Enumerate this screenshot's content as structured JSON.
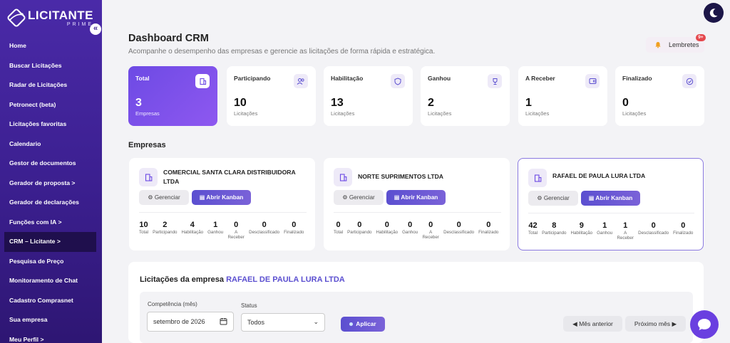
{
  "brand": {
    "name": "LICITANTE",
    "sub": "PRIME"
  },
  "sidebar": {
    "collapse_label": "«",
    "items": [
      {
        "label": "Home"
      },
      {
        "label": "Buscar Licitações"
      },
      {
        "label": "Radar de Licitações"
      },
      {
        "label": "Petronect (beta)"
      },
      {
        "label": "Licitações favoritas"
      },
      {
        "label": "Calendario"
      },
      {
        "label": "Gestor de documentos"
      },
      {
        "label": "Gerador de proposta >"
      },
      {
        "label": "Gerador de declarações"
      },
      {
        "label": "Funções com IA >"
      },
      {
        "label": "CRM – Licitante >",
        "active": true
      },
      {
        "label": "Pesquisa de Preço"
      },
      {
        "label": "Monitoramento de Chat"
      },
      {
        "label": "Cadastro Comprasnet"
      },
      {
        "label": "Sua empresa"
      },
      {
        "label": "Meu Perfil >"
      }
    ]
  },
  "header": {
    "title": "Dashboard CRM",
    "subtitle": "Acompanhe o desempenho das empresas e gerencie as licitações de forma rápida e estratégica.",
    "reminders_label": "Lembretes",
    "reminders_badge": "9+"
  },
  "stats": [
    {
      "label": "Total",
      "value": "3",
      "sub": "Empresas",
      "icon": "building-icon"
    },
    {
      "label": "Participando",
      "value": "10",
      "sub": "Licitações",
      "icon": "users-icon"
    },
    {
      "label": "Habilitação",
      "value": "13",
      "sub": "Licitações",
      "icon": "shield-icon"
    },
    {
      "label": "Ganhou",
      "value": "2",
      "sub": "Licitações",
      "icon": "trophy-icon"
    },
    {
      "label": "A Receber",
      "value": "1",
      "sub": "Licitações",
      "icon": "wallet-icon"
    },
    {
      "label": "Finalizado",
      "value": "0",
      "sub": "Licitações",
      "icon": "check-circle-icon"
    }
  ],
  "companies_section_title": "Empresas",
  "company_buttons": {
    "manage": "⚙ Gerenciar",
    "kanban": "▦ Abrir Kanban"
  },
  "company_stat_labels": [
    "Total",
    "Participando",
    "Habilitação",
    "Ganhou",
    "A Receber",
    "Desclassificado",
    "Finalizado"
  ],
  "companies": [
    {
      "name": "COMERCIAL SANTA CLARA DISTRIBUIDORA LTDA",
      "stats": [
        "10",
        "2",
        "4",
        "1",
        "0",
        "0",
        "0"
      ]
    },
    {
      "name": "NORTE SUPRIMENTOS LTDA",
      "stats": [
        "0",
        "0",
        "0",
        "0",
        "0",
        "0",
        "0"
      ]
    },
    {
      "name": "RAFAEL DE PAULA LURA LTDA",
      "stats": [
        "42",
        "8",
        "9",
        "1",
        "1",
        "0",
        "0"
      ],
      "selected": true
    }
  ],
  "panel": {
    "title_prefix": "Licitações da empresa",
    "title_company": "RAFAEL DE PAULA LURA LTDA",
    "competencia_label": "Competência (mês)",
    "competencia_value": "setembro de 2026",
    "status_label": "Status",
    "status_value": "Todos",
    "apply_label": "Aplicar",
    "prev_label": "◀ Mês anterior",
    "next_label": "Próximo mês ▶"
  },
  "colors": {
    "primary": "#6d4ae4",
    "sidebar": "#3b1f8f",
    "accent_text": "#5b4fd0",
    "badge": "#e5484d"
  }
}
